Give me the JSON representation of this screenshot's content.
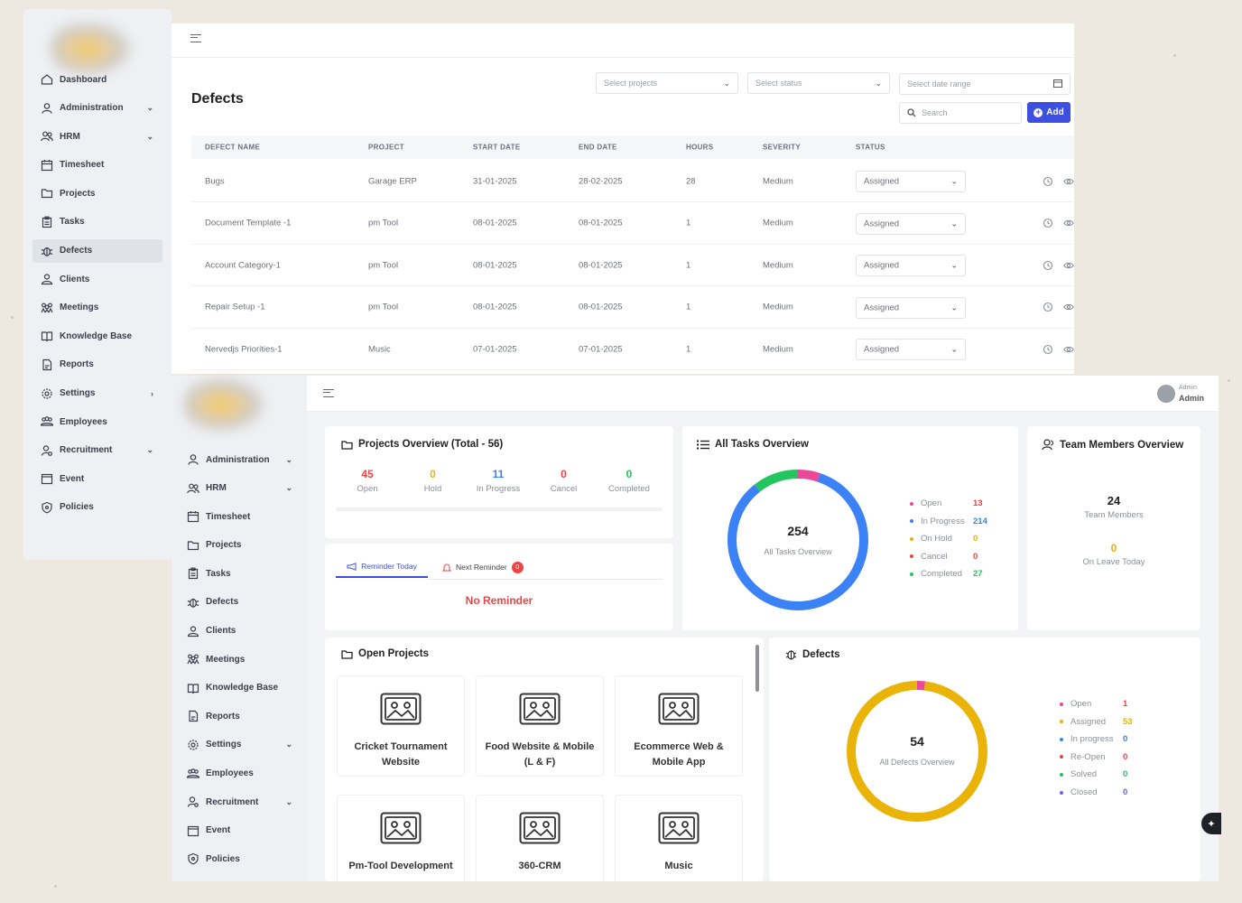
{
  "colors": {
    "accent": "#3d4fe0",
    "red": "#ef4444",
    "amber": "#eab308",
    "blue": "#3b82f6",
    "green": "#22c55e",
    "pink": "#ec4899",
    "purple": "#6366f1"
  },
  "back": {
    "sidebar": [
      {
        "label": "Dashboard",
        "icon": "home-icon"
      },
      {
        "label": "Administration",
        "icon": "user-icon",
        "chevron": "⌄"
      },
      {
        "label": "HRM",
        "icon": "users-icon",
        "chevron": "⌄"
      },
      {
        "label": "Timesheet",
        "icon": "calendar-icon"
      },
      {
        "label": "Projects",
        "icon": "folder-icon"
      },
      {
        "label": "Tasks",
        "icon": "clipboard-icon"
      },
      {
        "label": "Defects",
        "icon": "bug-icon",
        "active": true
      },
      {
        "label": "Clients",
        "icon": "clients-icon"
      },
      {
        "label": "Meetings",
        "icon": "meetings-icon"
      },
      {
        "label": "Knowledge Base",
        "icon": "book-icon"
      },
      {
        "label": "Reports",
        "icon": "report-icon"
      },
      {
        "label": "Settings",
        "icon": "gear-icon",
        "chevron": "›"
      },
      {
        "label": "Employees",
        "icon": "employees-icon"
      },
      {
        "label": "Recruitment",
        "icon": "recruit-icon",
        "chevron": "⌄"
      },
      {
        "label": "Event",
        "icon": "event-icon"
      },
      {
        "label": "Policies",
        "icon": "shield-icon"
      }
    ],
    "title": "Defects",
    "filters": {
      "projects_placeholder": "Select projects",
      "status_placeholder": "Select status",
      "date_placeholder": "Select date range",
      "search_placeholder": "Search"
    },
    "add_label": "Add",
    "columns": [
      "DEFECT NAME",
      "PROJECT",
      "START DATE",
      "END DATE",
      "HOURS",
      "SEVERITY",
      "STATUS"
    ],
    "rows": [
      {
        "name": "Bugs",
        "project": "Garage ERP",
        "start": "31-01-2025",
        "end": "28-02-2025",
        "hours": "28",
        "severity": "Medium",
        "status": "Assigned"
      },
      {
        "name": "Document Template -1",
        "project": "pm Tool",
        "start": "08-01-2025",
        "end": "08-01-2025",
        "hours": "1",
        "severity": "Medium",
        "status": "Assigned"
      },
      {
        "name": "Account Category-1",
        "project": "pm Tool",
        "start": "08-01-2025",
        "end": "08-01-2025",
        "hours": "1",
        "severity": "Medium",
        "status": "Assigned"
      },
      {
        "name": "Repair Setup -1",
        "project": "pm Tool",
        "start": "08-01-2025",
        "end": "08-01-2025",
        "hours": "1",
        "severity": "Medium",
        "status": "Assigned"
      },
      {
        "name": "Nervedjs Priorities-1",
        "project": "Music",
        "start": "07-01-2025",
        "end": "07-01-2025",
        "hours": "1",
        "severity": "Medium",
        "status": "Assigned"
      }
    ]
  },
  "front": {
    "sidebar": [
      {
        "label": "Administration",
        "icon": "user-icon",
        "chevron": "⌄"
      },
      {
        "label": "HRM",
        "icon": "users-icon",
        "chevron": "⌄"
      },
      {
        "label": "Timesheet",
        "icon": "calendar-icon"
      },
      {
        "label": "Projects",
        "icon": "folder-icon"
      },
      {
        "label": "Tasks",
        "icon": "clipboard-icon"
      },
      {
        "label": "Defects",
        "icon": "bug-icon"
      },
      {
        "label": "Clients",
        "icon": "clients-icon"
      },
      {
        "label": "Meetings",
        "icon": "meetings-icon"
      },
      {
        "label": "Knowledge Base",
        "icon": "book-icon"
      },
      {
        "label": "Reports",
        "icon": "report-icon"
      },
      {
        "label": "Settings",
        "icon": "gear-icon",
        "chevron": "⌄"
      },
      {
        "label": "Employees",
        "icon": "employees-icon"
      },
      {
        "label": "Recruitment",
        "icon": "recruit-icon",
        "chevron": "⌄"
      },
      {
        "label": "Event",
        "icon": "event-icon"
      },
      {
        "label": "Policies",
        "icon": "shield-icon"
      }
    ],
    "user": {
      "role": "Admin",
      "name": "Admin"
    },
    "projects_overview": {
      "title": "Projects Overview (Total - 56)",
      "stats": [
        {
          "value": "45",
          "label": "Open",
          "color": "#ef4444"
        },
        {
          "value": "0",
          "label": "Hold",
          "color": "#eab308"
        },
        {
          "value": "11",
          "label": "In Progress",
          "color": "#3b82f6"
        },
        {
          "value": "0",
          "label": "Cancel",
          "color": "#ef4444"
        },
        {
          "value": "0",
          "label": "Completed",
          "color": "#22c55e"
        }
      ]
    },
    "reminders": {
      "tab_today": "Reminder Today",
      "tab_next": "Next Reminder",
      "next_count": "0",
      "empty_text": "No Reminder"
    },
    "tasks_overview": {
      "title": "All Tasks Overview",
      "total": "254",
      "center_label": "All Tasks Overview",
      "legend": [
        {
          "label": "Open",
          "value": 13,
          "color": "#ec4899",
          "valcolor": "#ef4444"
        },
        {
          "label": "In Progress",
          "value": 214,
          "color": "#3b82f6",
          "valcolor": "#3b82f6"
        },
        {
          "label": "On Hold",
          "value": 0,
          "color": "#eab308",
          "valcolor": "#eab308"
        },
        {
          "label": "Cancel",
          "value": 0,
          "color": "#ef4444",
          "valcolor": "#ef4444"
        },
        {
          "label": "Completed",
          "value": 27,
          "color": "#22c55e",
          "valcolor": "#22c55e"
        }
      ]
    },
    "team_overview": {
      "title": "Team Members Overview",
      "members": "24",
      "members_label": "Team Members",
      "leave": "0",
      "leave_label": "On Leave Today"
    },
    "open_projects": {
      "title": "Open Projects",
      "items": [
        "Cricket Tournament Website",
        "Food Website & Mobile (L & F)",
        "Ecommerce Web & Mobile App",
        "Pm-Tool Development",
        "360-CRM",
        "Music"
      ]
    },
    "defects_overview": {
      "title": "Defects",
      "total": "54",
      "center_label": "All Defects Overview",
      "legend": [
        {
          "label": "Open",
          "value": 1,
          "color": "#ec4899",
          "valcolor": "#ef4444"
        },
        {
          "label": "Assigned",
          "value": 53,
          "color": "#eab308",
          "valcolor": "#eab308"
        },
        {
          "label": "In progress",
          "value": 0,
          "color": "#3b82f6",
          "valcolor": "#3b82f6"
        },
        {
          "label": "Re-Open",
          "value": 0,
          "color": "#ef4444",
          "valcolor": "#ef4444"
        },
        {
          "label": "Solved",
          "value": 0,
          "color": "#22c55e",
          "valcolor": "#22c55e"
        },
        {
          "label": "Closed",
          "value": 0,
          "color": "#6366f1",
          "valcolor": "#6366f1"
        }
      ]
    }
  }
}
